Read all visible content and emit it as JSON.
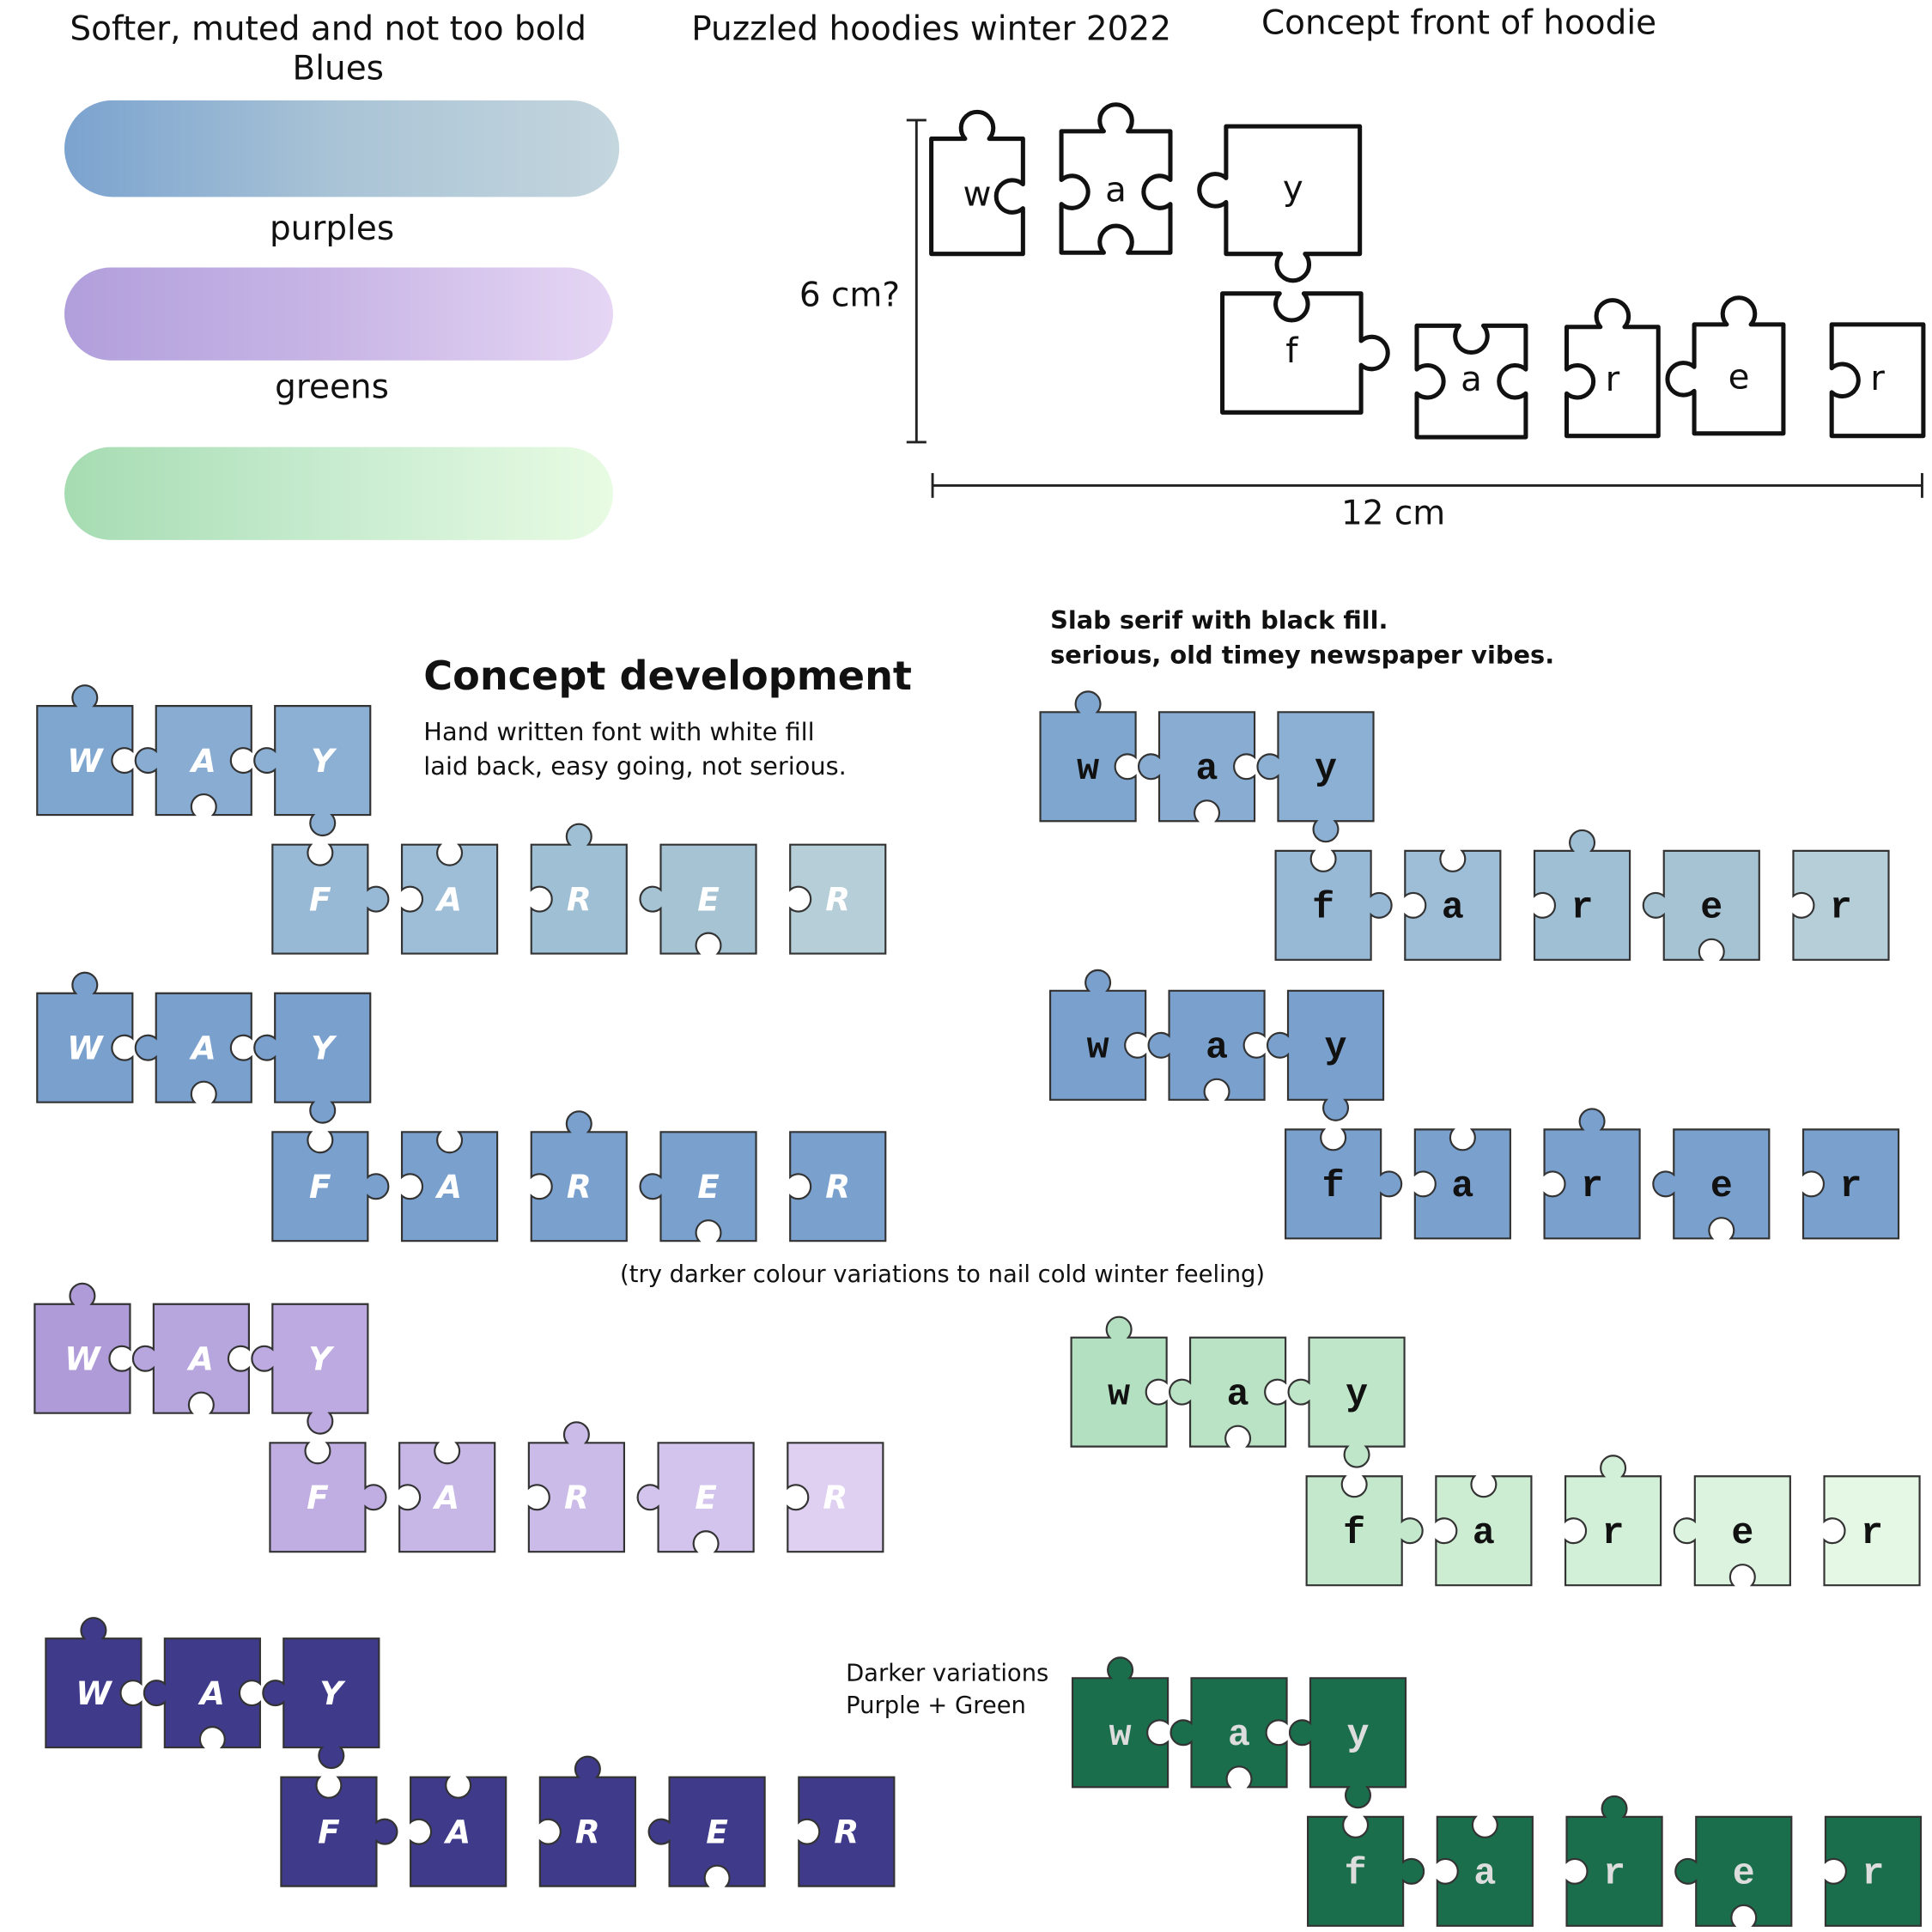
{
  "header": {
    "swatch_title": "Softer, muted and not too bold",
    "main_title": "Puzzled hoodies winter 2022",
    "concept_title": "Concept front of hoodie"
  },
  "swatches": [
    {
      "label": "Blues",
      "colors": [
        "#7ba3cf",
        "#aac4d6",
        "#c4d6de"
      ]
    },
    {
      "label": "purples",
      "colors": [
        "#b19fdc",
        "#c9b6e6",
        "#e6d6f4"
      ]
    },
    {
      "label": "greens",
      "colors": [
        "#a6dcb2",
        "#c8ecd0",
        "#e8fbe3"
      ]
    }
  ],
  "concept": {
    "letters": [
      "w",
      "a",
      "y",
      "f",
      "a",
      "r",
      "e",
      "r"
    ],
    "height_label": "6 cm?",
    "width_label": "12 cm"
  },
  "development": {
    "title": "Concept development",
    "hand_note": [
      "Hand written font with white fill",
      "laid back, easy going, not serious."
    ],
    "slab_note": [
      "Slab serif with black fill.",
      "serious, old timey newspaper vibes."
    ],
    "darker_note": "(try darker colour variations to nail cold winter feeling)",
    "darker_label": [
      "Darker variations",
      "Purple + Green"
    ]
  },
  "sets": [
    {
      "style": "hand",
      "text_color": "#ffffff",
      "letters": [
        "W",
        "A",
        "Y",
        "F",
        "A",
        "R",
        "E",
        "R"
      ],
      "colors": [
        "#7fa6cf",
        "#88acd2",
        "#8cb0d4",
        "#98b9d6",
        "#9dbed6",
        "#9fbfd5",
        "#a5c3d3",
        "#b6ced8"
      ]
    },
    {
      "style": "hand",
      "text_color": "#ffffff",
      "letters": [
        "W",
        "A",
        "Y",
        "F",
        "A",
        "R",
        "E",
        "R"
      ],
      "colors": [
        "#7aa0ce",
        "#7aa0ce",
        "#7aa0ce",
        "#7aa0ce",
        "#7aa0ce",
        "#7aa0ce",
        "#7aa0ce",
        "#7aa0ce"
      ]
    },
    {
      "style": "hand",
      "text_color": "#ffffff",
      "letters": [
        "W",
        "A",
        "Y",
        "F",
        "A",
        "R",
        "E",
        "R"
      ],
      "colors": [
        "#ae9bd8",
        "#b7a5de",
        "#bcaae0",
        "#c0aee2",
        "#c7b7e6",
        "#cbbbe8",
        "#d2c4ec",
        "#dfd0f1"
      ]
    },
    {
      "style": "hand",
      "text_color": "#ffffff",
      "letters": [
        "W",
        "A",
        "Y",
        "F",
        "A",
        "R",
        "E",
        "R"
      ],
      "colors": [
        "#3f3a8a",
        "#3f3a8a",
        "#3f3a8a",
        "#3f3a8a",
        "#3f3a8a",
        "#3f3a8a",
        "#3f3a8a",
        "#3f3a8a"
      ]
    },
    {
      "style": "slab",
      "text_color": "#111111",
      "letters": [
        "w",
        "a",
        "y",
        "f",
        "a",
        "r",
        "e",
        "r"
      ],
      "colors": [
        "#7fa6cf",
        "#88acd2",
        "#8cb0d4",
        "#98b9d6",
        "#9dbed6",
        "#9fbfd5",
        "#a5c3d3",
        "#b6ced8"
      ]
    },
    {
      "style": "slab",
      "text_color": "#111111",
      "letters": [
        "w",
        "a",
        "y",
        "f",
        "a",
        "r",
        "e",
        "r"
      ],
      "colors": [
        "#7aa0ce",
        "#7aa0ce",
        "#7aa0ce",
        "#7aa0ce",
        "#7aa0ce",
        "#7aa0ce",
        "#7aa0ce",
        "#7aa0ce"
      ]
    },
    {
      "style": "slab",
      "text_color": "#111111",
      "letters": [
        "w",
        "a",
        "y",
        "f",
        "a",
        "r",
        "e",
        "r"
      ],
      "colors": [
        "#b3e0c0",
        "#b9e3c4",
        "#bfe6c8",
        "#c4e8cc",
        "#cdedd3",
        "#d2efd7",
        "#dbf3df",
        "#e5f8e6"
      ]
    },
    {
      "style": "slab",
      "text_color": "#dddddd",
      "letters": [
        "w",
        "a",
        "y",
        "f",
        "a",
        "r",
        "e",
        "r"
      ],
      "colors": [
        "#1a6e4c",
        "#1a6e4c",
        "#1a6e4c",
        "#1a6e4c",
        "#1a6e4c",
        "#1a6e4c",
        "#1a6e4c",
        "#1a6e4c"
      ]
    }
  ]
}
